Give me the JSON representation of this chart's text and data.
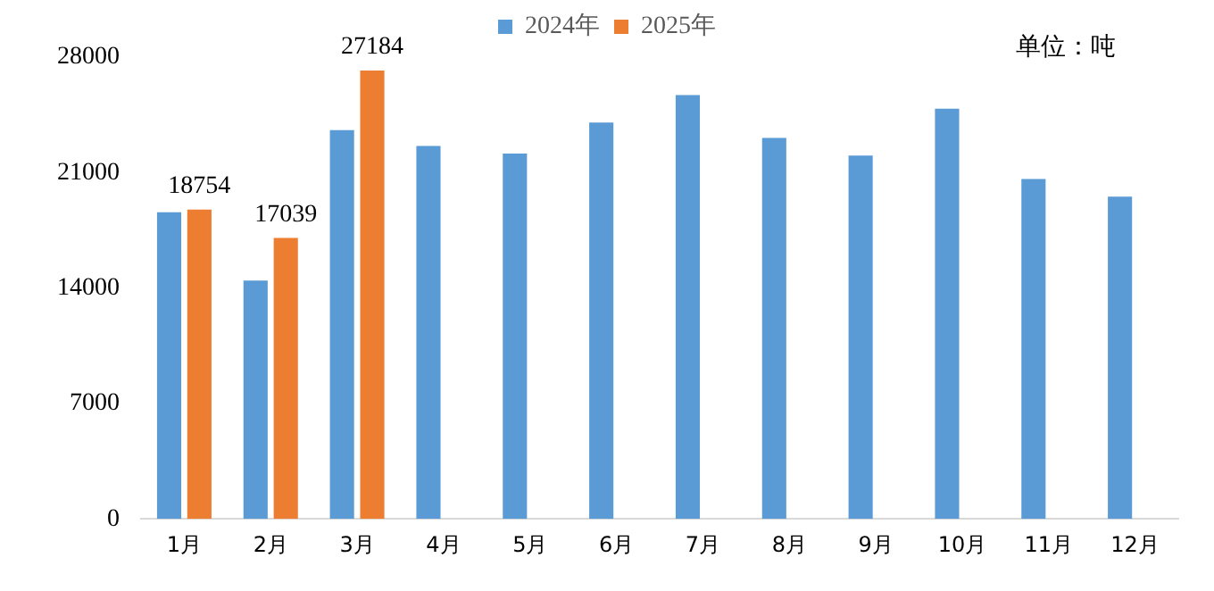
{
  "chart_data": {
    "type": "bar",
    "categories": [
      "1月",
      "2月",
      "3月",
      "4月",
      "5月",
      "6月",
      "7月",
      "8月",
      "9月",
      "10月",
      "11月",
      "12月"
    ],
    "series": [
      {
        "name": "2024年",
        "color": "#5b9bd5",
        "values": [
          18600,
          14450,
          23570,
          22620,
          22150,
          24040,
          25700,
          23100,
          22030,
          24870,
          20610,
          19540
        ]
      },
      {
        "name": "2025年",
        "color": "#ed7d31",
        "values": [
          18754,
          17039,
          27184,
          null,
          null,
          null,
          null,
          null,
          null,
          null,
          null,
          null
        ],
        "value_labels": [
          "18754",
          "17039",
          "27184",
          null,
          null,
          null,
          null,
          null,
          null,
          null,
          null,
          null
        ]
      }
    ],
    "ylim": [
      0,
      28000
    ],
    "yticks": [
      0,
      7000,
      14000,
      21000,
      28000
    ],
    "grid": false,
    "legend": "top",
    "annotations": [
      "单位：吨"
    ]
  }
}
